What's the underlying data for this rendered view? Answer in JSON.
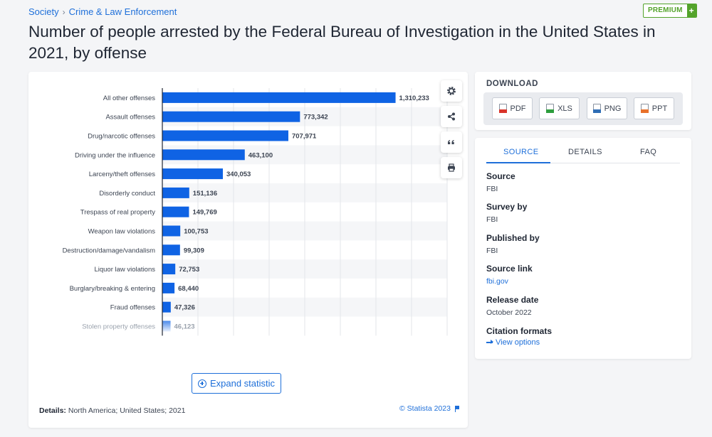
{
  "breadcrumb": {
    "items": [
      "Society",
      "Crime & Law Enforcement"
    ],
    "separator": "›"
  },
  "premium": {
    "label": "PREMIUM",
    "plus": "+"
  },
  "title": "Number of people arrested by the Federal Bureau of Investigation in the United States in 2021, by offense",
  "chart_data": {
    "type": "bar",
    "orientation": "horizontal",
    "categories": [
      "All other offenses",
      "Assault offenses",
      "Drug/narcotic offenses",
      "Driving under the influence",
      "Larceny/theft offenses",
      "Disorderly conduct",
      "Trespass of real property",
      "Weapon law violations",
      "Destruction/damage/vandalism",
      "Liquor law violations",
      "Burglary/breaking & entering",
      "Fraud offenses",
      "Stolen property offenses"
    ],
    "values": [
      1310233,
      773342,
      707971,
      463100,
      340053,
      151136,
      149769,
      100753,
      99309,
      72753,
      68440,
      47326,
      46123
    ],
    "value_labels": [
      "1,310,233",
      "773,342",
      "707,971",
      "463,100",
      "340,053",
      "151,136",
      "149,769",
      "100,753",
      "99,309",
      "72,753",
      "68,440",
      "47,326",
      "46,123"
    ],
    "xlim": [
      0,
      1600000
    ],
    "grid": true,
    "bar_color": "#0f63e4",
    "faded_last": true,
    "title": "",
    "xlabel": "",
    "ylabel": ""
  },
  "chart_footer": {
    "details_label": "Details:",
    "details_text": "North America; United States; 2021",
    "copyright": "© Statista 2023"
  },
  "tools": [
    "gear-icon",
    "share-icon",
    "quote-icon",
    "print-icon"
  ],
  "expand_label": "Expand statistic",
  "download": {
    "title": "DOWNLOAD",
    "buttons": [
      {
        "label": "PDF",
        "color": "#d9342b"
      },
      {
        "label": "XLS",
        "color": "#2e9e3e"
      },
      {
        "label": "PNG",
        "color": "#2f6db5"
      },
      {
        "label": "PPT",
        "color": "#e8712b"
      }
    ]
  },
  "tabs": {
    "source": "SOURCE",
    "details": "DETAILS",
    "faq": "FAQ"
  },
  "info": {
    "source_label": "Source",
    "source_value": "FBI",
    "survey_label": "Survey by",
    "survey_value": "FBI",
    "published_label": "Published by",
    "published_value": "FBI",
    "link_label": "Source link",
    "link_value": "fbi.gov",
    "release_label": "Release date",
    "release_value": "October 2022",
    "citation_label": "Citation formats",
    "citation_link": "View options"
  },
  "colors": {
    "accent": "#1e6fd9",
    "premium": "#53a32b"
  }
}
